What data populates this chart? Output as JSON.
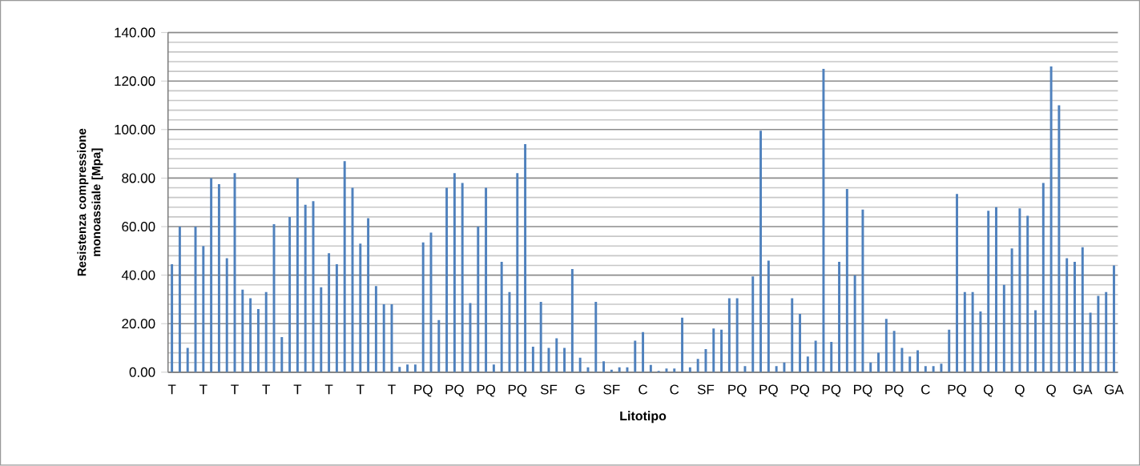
{
  "chart_data": {
    "type": "bar",
    "xlabel": "Litotipo",
    "ylabel": "Resistenza compressione monoassiale [Mpa]",
    "categories": [
      "T",
      null,
      null,
      null,
      "T",
      null,
      null,
      null,
      "T",
      null,
      null,
      null,
      "T",
      null,
      null,
      null,
      "T",
      null,
      null,
      null,
      "T",
      null,
      null,
      null,
      "T",
      null,
      null,
      null,
      "T",
      null,
      null,
      null,
      "PQ",
      null,
      null,
      null,
      "PQ",
      null,
      null,
      null,
      "PQ",
      null,
      null,
      null,
      "PQ",
      null,
      null,
      null,
      "SF",
      null,
      null,
      null,
      "G",
      null,
      null,
      null,
      "SF",
      null,
      null,
      null,
      "C",
      null,
      null,
      null,
      "C",
      null,
      null,
      null,
      "SF",
      null,
      null,
      null,
      "PQ",
      null,
      null,
      null,
      "PQ",
      null,
      null,
      null,
      "PQ",
      null,
      null,
      null,
      "PQ",
      null,
      null,
      null,
      "PQ",
      null,
      null,
      null,
      "PQ",
      null,
      null,
      null,
      "C",
      null,
      null,
      null,
      "PQ",
      null,
      null,
      null,
      "Q",
      null,
      null,
      null,
      "Q",
      null,
      null,
      null,
      "Q",
      null,
      null,
      null,
      "GA",
      null,
      null,
      null,
      "GA"
    ],
    "values": [
      44.5,
      60,
      10,
      60,
      52,
      80,
      77.5,
      47,
      82,
      34,
      30.5,
      26,
      33,
      61,
      14.5,
      64,
      80,
      69,
      70.5,
      35,
      49,
      44.5,
      87,
      76,
      53,
      63.5,
      35.5,
      28,
      28,
      2.2,
      3.2,
      3.2,
      53.5,
      57.5,
      21.5,
      76,
      82,
      78,
      28.5,
      60,
      76,
      3.2,
      45.5,
      33,
      82,
      94,
      10.5,
      29,
      10,
      14,
      10,
      42.5,
      6,
      2,
      29,
      4.5,
      1,
      2,
      2,
      13,
      16.5,
      3,
      0.5,
      1.5,
      1.5,
      22.5,
      2,
      5.5,
      9.5,
      18,
      17.5,
      30.5,
      30.5,
      2.5,
      39.5,
      99.5,
      46,
      2.5,
      4,
      30.5,
      24,
      6.5,
      13,
      125,
      12.5,
      45.5,
      75.5,
      40,
      67,
      4,
      8,
      22,
      17,
      10,
      6.5,
      9,
      2.5,
      2.5,
      3.5,
      17.5,
      73.5,
      33,
      33,
      25,
      66.5,
      68,
      36,
      51,
      67.5,
      64.5,
      25.5,
      78,
      126,
      110,
      47,
      45.5,
      51.5,
      24.5,
      31.5,
      33,
      44
    ],
    "color": "#4f81bd",
    "ylim": [
      0,
      140
    ],
    "yticks": [
      {
        "value": 0,
        "label": "0.00"
      },
      {
        "value": 20,
        "label": "20.00"
      },
      {
        "value": 40,
        "label": "40.00"
      },
      {
        "value": 60,
        "label": "60.00"
      },
      {
        "value": 80,
        "label": "80.00"
      },
      {
        "value": 100,
        "label": "100.00"
      },
      {
        "value": 120,
        "label": "120.00"
      },
      {
        "value": 140,
        "label": "140.00"
      }
    ],
    "grid": "y"
  }
}
